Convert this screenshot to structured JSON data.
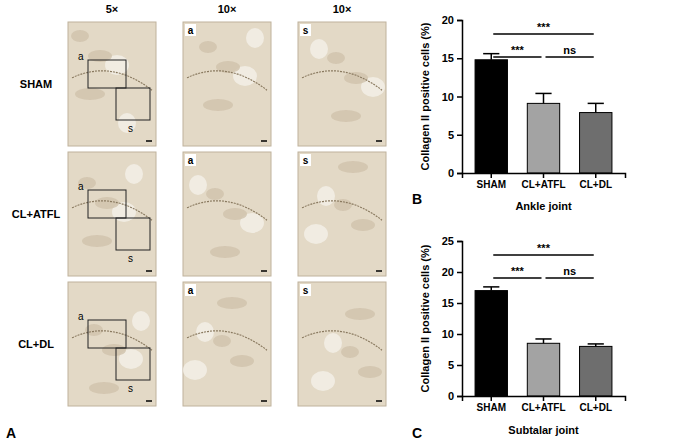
{
  "chart_data": [
    {
      "type": "bar",
      "panel_label": "B",
      "y_label": "Collagen II positive cells (%)",
      "x_label": "Ankle joint",
      "categories": [
        "SHAM",
        "CL+ATFL",
        "CL+DL"
      ],
      "values": [
        14.8,
        9.1,
        7.9
      ],
      "errors": [
        0.8,
        1.3,
        1.2
      ],
      "colors": [
        "#000000",
        "#a3a3a3",
        "#6e6e6e"
      ],
      "ylim": [
        0,
        20
      ],
      "yticks": [
        0,
        5,
        10,
        15,
        20
      ],
      "grid": false,
      "annotations": [
        {
          "from": "SHAM",
          "to": "CL+DL",
          "text": "***"
        },
        {
          "from": "SHAM",
          "to": "CL+ATFL",
          "text": "***"
        },
        {
          "from": "CL+ATFL",
          "to": "CL+DL",
          "text": "ns"
        }
      ]
    },
    {
      "type": "bar",
      "panel_label": "C",
      "y_label": "Collagen II positive cells (%)",
      "x_label": "Subtalar joint",
      "categories": [
        "SHAM",
        "CL+ATFL",
        "CL+DL"
      ],
      "values": [
        17.0,
        8.5,
        8.0
      ],
      "errors": [
        0.6,
        0.7,
        0.4
      ],
      "colors": [
        "#000000",
        "#a3a3a3",
        "#6e6e6e"
      ],
      "ylim": [
        0,
        25
      ],
      "yticks": [
        0,
        5,
        10,
        15,
        20,
        25
      ],
      "grid": false,
      "annotations": [
        {
          "from": "SHAM",
          "to": "CL+DL",
          "text": "***"
        },
        {
          "from": "SHAM",
          "to": "CL+ATFL",
          "text": "***"
        },
        {
          "from": "CL+ATFL",
          "to": "CL+DL",
          "text": "ns"
        }
      ]
    }
  ],
  "image_panel": {
    "panel_label": "A",
    "columns": [
      "5×",
      "10×",
      "10×"
    ],
    "rows": [
      "SHAM",
      "CL+ATFL",
      "CL+DL"
    ],
    "regions": [
      "a",
      "s"
    ]
  }
}
